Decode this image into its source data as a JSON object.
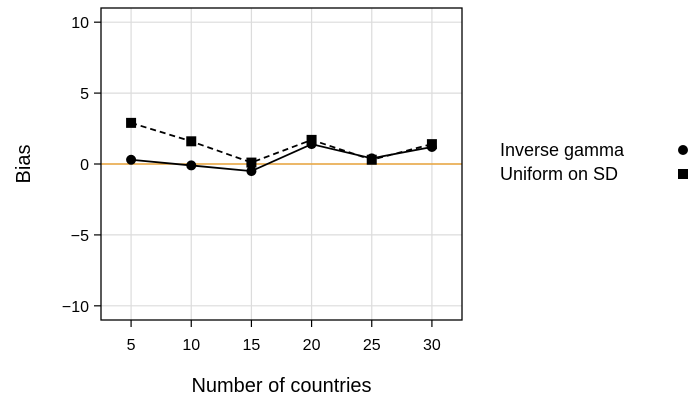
{
  "chart_data": {
    "type": "line",
    "xlabel": "Number of countries",
    "ylabel": "Bias",
    "x": [
      5,
      10,
      15,
      20,
      25,
      30
    ],
    "xlim": [
      2.5,
      32.5
    ],
    "ylim": [
      -11,
      11
    ],
    "xticks": [
      5,
      10,
      15,
      20,
      25,
      30
    ],
    "yticks": [
      10,
      5,
      0,
      -5,
      -10
    ],
    "x_tick_labels": [
      "5",
      "10",
      "15",
      "20",
      "25",
      "30"
    ],
    "y_tick_labels": [
      "10",
      "5",
      "0",
      "−5",
      "−10"
    ],
    "grid": true,
    "reference_line": {
      "y": 0,
      "color": "#E8A33A"
    },
    "legend_position": "right",
    "series": [
      {
        "name": "Inverse gamma",
        "values": [
          0.3,
          -0.1,
          -0.5,
          1.4,
          0.4,
          1.2
        ],
        "marker": "circle",
        "line_style": "solid",
        "color": "#000000"
      },
      {
        "name": "Uniform on SD",
        "values": [
          2.9,
          1.6,
          0.1,
          1.7,
          0.3,
          1.4
        ],
        "marker": "square",
        "line_style": "dashed",
        "color": "#000000"
      }
    ]
  }
}
